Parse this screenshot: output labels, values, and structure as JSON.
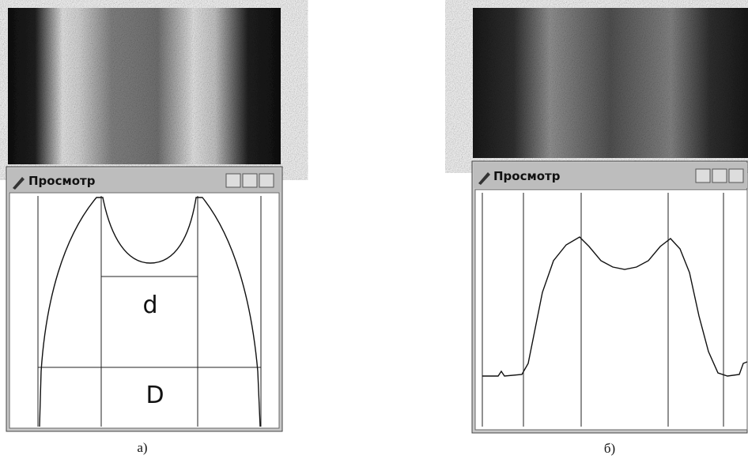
{
  "panels": [
    {
      "window_title": "Просмотр",
      "labels": [
        "d",
        "D"
      ],
      "caption": "а)"
    },
    {
      "window_title": "Просмотр",
      "caption": "б)"
    }
  ]
}
